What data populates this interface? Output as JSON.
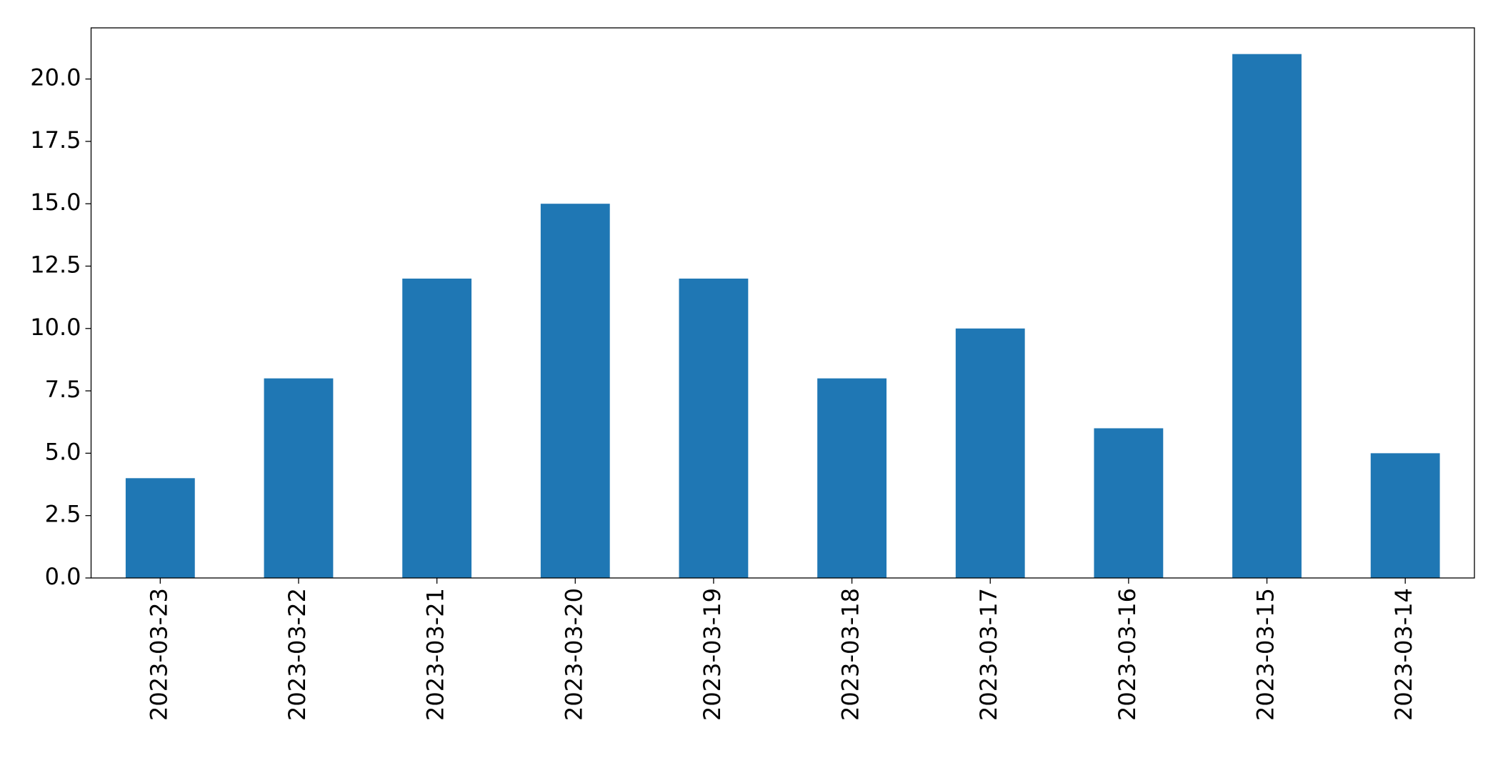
{
  "chart_data": {
    "type": "bar",
    "categories": [
      "2023-03-23",
      "2023-03-22",
      "2023-03-21",
      "2023-03-20",
      "2023-03-19",
      "2023-03-18",
      "2023-03-17",
      "2023-03-16",
      "2023-03-15",
      "2023-03-14"
    ],
    "values": [
      4,
      8,
      12,
      15,
      12,
      8,
      10,
      6,
      21,
      5
    ],
    "color": "#1f77b4",
    "ylim": [
      0,
      22.05
    ],
    "yticks": [
      {
        "value": 0,
        "label": "0.0"
      },
      2.5,
      {
        "value": 5,
        "label": "5.0"
      },
      7.5,
      {
        "value": 10,
        "label": "10.0"
      },
      12.5,
      {
        "value": 15,
        "label": "15.0"
      },
      17.5,
      {
        "value": 20,
        "label": "20.0"
      }
    ],
    "grid": false
  }
}
